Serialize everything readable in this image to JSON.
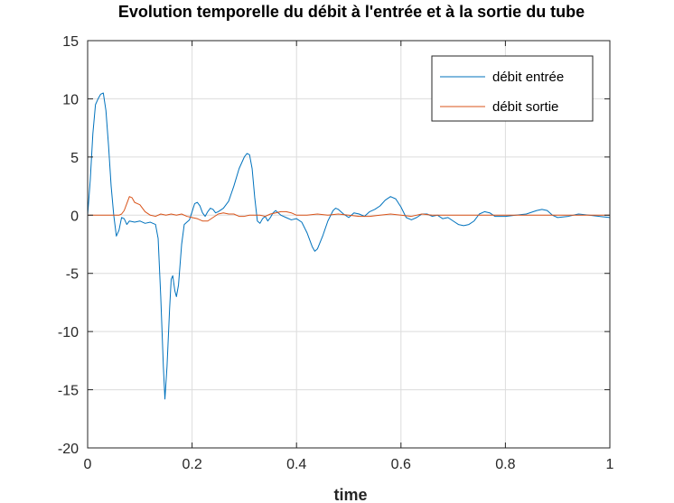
{
  "chart_data": {
    "type": "line",
    "title": "Evolution temporelle du débit à l'entrée et à la sortie du tube",
    "xlabel": "time",
    "ylabel": "",
    "xlim": [
      0,
      1
    ],
    "ylim": [
      -20,
      15
    ],
    "xticks": [
      0,
      0.2,
      0.4,
      0.6,
      0.8,
      1
    ],
    "xtick_labels": [
      "0",
      "0.2",
      "0.4",
      "0.6",
      "0.8",
      "1"
    ],
    "yticks": [
      -20,
      -15,
      -10,
      -5,
      0,
      5,
      10,
      15
    ],
    "ytick_labels": [
      "-20",
      "-15",
      "-10",
      "-5",
      "0",
      "5",
      "10",
      "15"
    ],
    "grid": true,
    "legend_position": "top-right",
    "series": [
      {
        "name": "débit entrée",
        "color": "#0072BD",
        "points": [
          [
            0,
            0
          ],
          [
            0.005,
            3
          ],
          [
            0.01,
            7
          ],
          [
            0.015,
            9.5
          ],
          [
            0.02,
            10
          ],
          [
            0.025,
            10.4
          ],
          [
            0.03,
            10.5
          ],
          [
            0.035,
            9
          ],
          [
            0.04,
            6
          ],
          [
            0.045,
            2.5
          ],
          [
            0.05,
            0
          ],
          [
            0.055,
            -1.8
          ],
          [
            0.06,
            -1.3
          ],
          [
            0.065,
            -0.2
          ],
          [
            0.07,
            -0.3
          ],
          [
            0.075,
            -0.8
          ],
          [
            0.08,
            -0.5
          ],
          [
            0.09,
            -0.6
          ],
          [
            0.1,
            -0.5
          ],
          [
            0.11,
            -0.7
          ],
          [
            0.12,
            -0.6
          ],
          [
            0.13,
            -0.8
          ],
          [
            0.135,
            -2
          ],
          [
            0.14,
            -7
          ],
          [
            0.145,
            -13
          ],
          [
            0.148,
            -15.8
          ],
          [
            0.152,
            -13
          ],
          [
            0.157,
            -8
          ],
          [
            0.16,
            -5.5
          ],
          [
            0.163,
            -5.2
          ],
          [
            0.167,
            -6.5
          ],
          [
            0.17,
            -7
          ],
          [
            0.174,
            -6
          ],
          [
            0.18,
            -2.5
          ],
          [
            0.185,
            -0.8
          ],
          [
            0.19,
            -0.6
          ],
          [
            0.195,
            -0.4
          ],
          [
            0.2,
            0.3
          ],
          [
            0.205,
            1
          ],
          [
            0.21,
            1.1
          ],
          [
            0.215,
            0.8
          ],
          [
            0.22,
            0.2
          ],
          [
            0.225,
            -0.1
          ],
          [
            0.23,
            0.3
          ],
          [
            0.235,
            0.6
          ],
          [
            0.24,
            0.5
          ],
          [
            0.245,
            0.2
          ],
          [
            0.25,
            0.3
          ],
          [
            0.26,
            0.6
          ],
          [
            0.27,
            1.2
          ],
          [
            0.28,
            2.5
          ],
          [
            0.29,
            4
          ],
          [
            0.3,
            5
          ],
          [
            0.305,
            5.3
          ],
          [
            0.31,
            5.2
          ],
          [
            0.315,
            4
          ],
          [
            0.32,
            1.5
          ],
          [
            0.325,
            -0.5
          ],
          [
            0.33,
            -0.7
          ],
          [
            0.335,
            -0.3
          ],
          [
            0.34,
            -0.1
          ],
          [
            0.345,
            -0.5
          ],
          [
            0.35,
            -0.2
          ],
          [
            0.355,
            0.2
          ],
          [
            0.36,
            0.4
          ],
          [
            0.37,
            0
          ],
          [
            0.38,
            -0.2
          ],
          [
            0.39,
            -0.4
          ],
          [
            0.4,
            -0.3
          ],
          [
            0.41,
            -0.6
          ],
          [
            0.42,
            -1.5
          ],
          [
            0.43,
            -2.7
          ],
          [
            0.435,
            -3.1
          ],
          [
            0.44,
            -2.9
          ],
          [
            0.45,
            -1.8
          ],
          [
            0.46,
            -0.5
          ],
          [
            0.47,
            0.4
          ],
          [
            0.475,
            0.6
          ],
          [
            0.48,
            0.5
          ],
          [
            0.49,
            0.1
          ],
          [
            0.5,
            -0.2
          ],
          [
            0.51,
            0.2
          ],
          [
            0.52,
            0.1
          ],
          [
            0.53,
            -0.1
          ],
          [
            0.54,
            0.3
          ],
          [
            0.55,
            0.5
          ],
          [
            0.56,
            0.8
          ],
          [
            0.57,
            1.3
          ],
          [
            0.58,
            1.6
          ],
          [
            0.59,
            1.4
          ],
          [
            0.6,
            0.7
          ],
          [
            0.61,
            -0.2
          ],
          [
            0.62,
            -0.4
          ],
          [
            0.63,
            -0.2
          ],
          [
            0.64,
            0.1
          ],
          [
            0.65,
            0.1
          ],
          [
            0.66,
            -0.1
          ],
          [
            0.67,
            0
          ],
          [
            0.68,
            -0.3
          ],
          [
            0.69,
            -0.2
          ],
          [
            0.7,
            -0.5
          ],
          [
            0.71,
            -0.8
          ],
          [
            0.72,
            -0.9
          ],
          [
            0.73,
            -0.8
          ],
          [
            0.74,
            -0.5
          ],
          [
            0.75,
            0.1
          ],
          [
            0.76,
            0.3
          ],
          [
            0.77,
            0.2
          ],
          [
            0.78,
            -0.1
          ],
          [
            0.8,
            -0.1
          ],
          [
            0.82,
            0
          ],
          [
            0.84,
            0.1
          ],
          [
            0.86,
            0.4
          ],
          [
            0.87,
            0.5
          ],
          [
            0.88,
            0.4
          ],
          [
            0.89,
            0
          ],
          [
            0.9,
            -0.2
          ],
          [
            0.92,
            -0.1
          ],
          [
            0.94,
            0.1
          ],
          [
            0.96,
            0
          ],
          [
            0.98,
            -0.1
          ],
          [
            1,
            -0.2
          ]
        ]
      },
      {
        "name": "débit sortie",
        "color": "#D95319",
        "points": [
          [
            0,
            0
          ],
          [
            0.06,
            0
          ],
          [
            0.065,
            0.1
          ],
          [
            0.07,
            0.4
          ],
          [
            0.075,
            1
          ],
          [
            0.08,
            1.6
          ],
          [
            0.085,
            1.5
          ],
          [
            0.09,
            1.1
          ],
          [
            0.095,
            1
          ],
          [
            0.1,
            0.9
          ],
          [
            0.105,
            0.6
          ],
          [
            0.11,
            0.3
          ],
          [
            0.12,
            0
          ],
          [
            0.13,
            -0.1
          ],
          [
            0.14,
            0.1
          ],
          [
            0.15,
            0
          ],
          [
            0.16,
            0.1
          ],
          [
            0.17,
            0
          ],
          [
            0.18,
            0.1
          ],
          [
            0.19,
            -0.1
          ],
          [
            0.2,
            -0.2
          ],
          [
            0.21,
            -0.3
          ],
          [
            0.22,
            -0.5
          ],
          [
            0.23,
            -0.5
          ],
          [
            0.24,
            -0.2
          ],
          [
            0.25,
            0.1
          ],
          [
            0.26,
            0.2
          ],
          [
            0.27,
            0.1
          ],
          [
            0.28,
            0.1
          ],
          [
            0.29,
            -0.1
          ],
          [
            0.3,
            -0.1
          ],
          [
            0.31,
            0
          ],
          [
            0.32,
            0
          ],
          [
            0.33,
            0
          ],
          [
            0.34,
            -0.1
          ],
          [
            0.35,
            0.1
          ],
          [
            0.36,
            0.2
          ],
          [
            0.37,
            0.3
          ],
          [
            0.38,
            0.3
          ],
          [
            0.39,
            0.2
          ],
          [
            0.4,
            0
          ],
          [
            0.42,
            0
          ],
          [
            0.44,
            0.1
          ],
          [
            0.46,
            0
          ],
          [
            0.48,
            0.1
          ],
          [
            0.5,
            0
          ],
          [
            0.52,
            -0.1
          ],
          [
            0.54,
            -0.1
          ],
          [
            0.56,
            0
          ],
          [
            0.58,
            0.1
          ],
          [
            0.6,
            0
          ],
          [
            0.62,
            -0.1
          ],
          [
            0.64,
            0.1
          ],
          [
            0.66,
            0
          ],
          [
            0.68,
            0
          ],
          [
            0.7,
            0
          ],
          [
            0.75,
            0
          ],
          [
            0.8,
            0
          ],
          [
            0.85,
            0
          ],
          [
            0.9,
            0
          ],
          [
            0.95,
            0
          ],
          [
            1,
            0
          ]
        ]
      }
    ]
  }
}
